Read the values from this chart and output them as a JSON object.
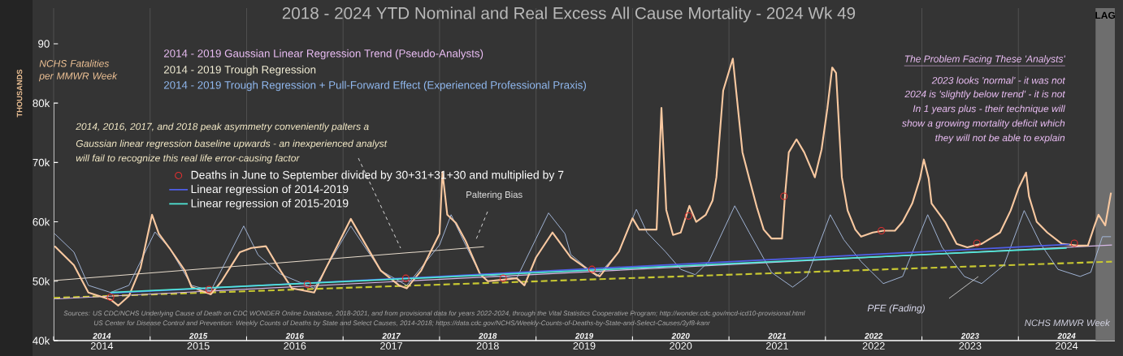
{
  "chart_data": {
    "type": "line",
    "title": "2018 - 2024 YTD Nominal and Real Excess All Cause Mortality - 2024 Wk 49",
    "xlabel": "NCHS MMWR Week",
    "ylabel": "THOUSANDS",
    "xlim": [
      2014,
      2025
    ],
    "xticks": [
      {
        "value": 2014,
        "label": null
      },
      {
        "value": 2015,
        "label": null
      },
      {
        "value": 2016,
        "label": null
      },
      {
        "value": 2017,
        "label": null
      },
      {
        "value": 2018,
        "label": null
      },
      {
        "value": 2019,
        "label": null
      },
      {
        "value": 2020,
        "label": null
      },
      {
        "value": 2021,
        "label": null
      },
      {
        "value": 2022,
        "label": null
      },
      {
        "value": 2023,
        "label": null
      },
      {
        "value": 2024,
        "label": null
      },
      {
        "value": 2014.5,
        "label": "2014"
      },
      {
        "value": 2015.5,
        "label": "2015"
      },
      {
        "value": 2016.5,
        "label": "2016"
      },
      {
        "value": 2017.5,
        "label": "2017"
      },
      {
        "value": 2018.5,
        "label": "2018"
      },
      {
        "value": 2019.5,
        "label": "2019"
      },
      {
        "value": 2020.5,
        "label": "2020"
      },
      {
        "value": 2021.5,
        "label": "2021"
      },
      {
        "value": 2022.5,
        "label": "2022"
      },
      {
        "value": 2023.5,
        "label": "2023"
      },
      {
        "value": 2024.5,
        "label": "2024"
      }
    ],
    "x2lim": [
      2014,
      2025
    ],
    "x2ticks": [
      {
        "value": 2014.5,
        "label": "2014"
      },
      {
        "value": 2015.5,
        "label": "2015"
      },
      {
        "value": 2016.5,
        "label": "2016"
      },
      {
        "value": 2017.5,
        "label": "2017"
      },
      {
        "value": 2018.5,
        "label": "2018"
      },
      {
        "value": 2019.5,
        "label": "2019"
      },
      {
        "value": 2020.5,
        "label": "2020"
      },
      {
        "value": 2021.5,
        "label": "2021"
      },
      {
        "value": 2022.5,
        "label": "2022"
      },
      {
        "value": 2023.5,
        "label": "2023"
      },
      {
        "value": 2024.5,
        "label": "2024"
      }
    ],
    "ylim": [
      40,
      96
    ],
    "yticks": [
      {
        "value": 40,
        "label": "40k"
      },
      {
        "value": 50,
        "label": "50k"
      },
      {
        "value": 60,
        "label": "60k"
      },
      {
        "value": 70,
        "label": "70k"
      },
      {
        "value": 80,
        "label": "80k"
      },
      {
        "value": 90,
        "label": "90"
      }
    ],
    "grid": "x",
    "legend": "left",
    "bands": [
      {
        "axis": "x",
        "from": 2024.8,
        "to": 2025,
        "label": "LAG",
        "color": "#6e6e6e"
      }
    ],
    "series": [
      {
        "color": "#c8c832",
        "line_style": "dashed",
        "marker": "none",
        "x": [
          2014.0,
          2024.97
        ],
        "values": [
          47.2,
          53.3
        ]
      },
      {
        "color": "#d8b8e8",
        "marker": "none",
        "x": [
          2014.0,
          2024.97
        ],
        "values": [
          47.0,
          56.1
        ]
      },
      {
        "color": "#e8dccc",
        "marker": "none",
        "x": [
          2014.0,
          2018.46
        ],
        "values": [
          50.1,
          55.8
        ]
      },
      {
        "color": "#a8bce0",
        "marker": "none",
        "x": [
          2014.01,
          2014.21,
          2014.36,
          2014.59,
          2014.78,
          2015.05,
          2015.2,
          2015.43,
          2015.63,
          2015.97,
          2016.12,
          2016.35,
          2016.7,
          2017.08,
          2017.39,
          2017.66,
          2018.0,
          2018.12,
          2018.27,
          2018.42,
          2018.8,
          2019.13,
          2019.3,
          2019.36,
          2019.63,
          2019.86,
          2020.04,
          2020.15,
          2020.34,
          2020.5,
          2020.65,
          2020.79,
          2021.06,
          2021.21,
          2021.44,
          2021.66,
          2021.81,
          2022.05,
          2022.19,
          2022.37,
          2022.6,
          2022.8,
          2023.06,
          2023.21,
          2023.44,
          2023.62,
          2023.85,
          2024.06,
          2024.23,
          2024.41,
          2024.64,
          2024.75,
          2024.87,
          2024.96
        ],
        "values": [
          58.0,
          54.9,
          49.3,
          48.1,
          49.3,
          58.3,
          55.6,
          49.3,
          48.4,
          59.3,
          54.4,
          51.2,
          48.8,
          59.3,
          51.8,
          49.3,
          56.1,
          61.2,
          56.1,
          51.2,
          50.5,
          61.5,
          58.0,
          54.5,
          50.8,
          55.0,
          62.1,
          58.2,
          55.0,
          52.0,
          51.1,
          53.3,
          62.7,
          58.2,
          51.5,
          49.0,
          50.8,
          61.2,
          57.0,
          53.3,
          49.6,
          50.8,
          61.2,
          55.7,
          50.8,
          49.6,
          52.7,
          61.9,
          56.3,
          52.0,
          50.8,
          51.5,
          57.5,
          57.5
        ]
      },
      {
        "color": "#f8c8a0",
        "marker": "none",
        "x": [
          2014.01,
          2014.21,
          2014.36,
          2014.59,
          2014.67,
          2014.78,
          2014.9,
          2015.02,
          2015.09,
          2015.2,
          2015.36,
          2015.43,
          2015.63,
          2015.74,
          2015.93,
          2016.05,
          2016.2,
          2016.35,
          2016.47,
          2016.7,
          2016.81,
          2017.08,
          2017.19,
          2017.39,
          2017.58,
          2017.66,
          2017.81,
          2018.0,
          2018.03,
          2018.08,
          2018.17,
          2018.27,
          2018.42,
          2018.5,
          2018.8,
          2018.88,
          2019.0,
          2019.17,
          2019.36,
          2019.59,
          2019.66,
          2019.86,
          2020.0,
          2020.07,
          2020.25,
          2020.3,
          2020.35,
          2020.42,
          2020.5,
          2020.59,
          2020.66,
          2020.76,
          2020.83,
          2020.87,
          2020.94,
          2021.04,
          2021.14,
          2021.21,
          2021.29,
          2021.36,
          2021.44,
          2021.55,
          2021.58,
          2021.62,
          2021.7,
          2021.78,
          2021.89,
          2021.96,
          2022.02,
          2022.07,
          2022.11,
          2022.17,
          2022.23,
          2022.31,
          2022.37,
          2022.49,
          2022.6,
          2022.72,
          2022.8,
          2022.9,
          2022.98,
          2023.02,
          2023.07,
          2023.1,
          2023.24,
          2023.36,
          2023.47,
          2023.62,
          2023.81,
          2023.92,
          2024.0,
          2024.08,
          2024.11,
          2024.19,
          2024.3,
          2024.45,
          2024.61,
          2024.72,
          2024.79,
          2024.83,
          2024.9,
          2024.96
        ],
        "values": [
          55.9,
          52.7,
          48.1,
          46.9,
          45.9,
          47.5,
          52.2,
          61.2,
          58.0,
          55.6,
          51.8,
          49.0,
          47.8,
          50.0,
          54.9,
          55.6,
          55.9,
          51.8,
          48.8,
          48.1,
          51.8,
          60.5,
          57.4,
          51.8,
          49.3,
          48.8,
          51.8,
          58.0,
          68.4,
          61.2,
          59.8,
          56.8,
          51.2,
          50.0,
          50.5,
          49.3,
          54.0,
          58.2,
          54.0,
          51.4,
          50.8,
          55.0,
          60.6,
          58.7,
          58.7,
          79.2,
          62.0,
          57.8,
          58.2,
          62.7,
          60.0,
          61.2,
          63.6,
          67.5,
          82.1,
          87.5,
          71.7,
          67.3,
          62.4,
          58.7,
          57.2,
          57.2,
          64.3,
          71.7,
          73.9,
          71.7,
          67.5,
          72.2,
          79.1,
          86.0,
          85.1,
          67.5,
          61.9,
          58.7,
          57.5,
          58.2,
          58.5,
          58.5,
          60.0,
          63.1,
          67.3,
          70.5,
          67.3,
          63.1,
          60.0,
          56.3,
          55.7,
          56.3,
          58.2,
          61.9,
          65.6,
          68.3,
          64.3,
          60.0,
          58.2,
          56.3,
          56.0,
          56.0,
          59.4,
          61.2,
          59.4,
          64.9
        ]
      },
      {
        "type": "scatter",
        "name": "Deaths in June to September divided by 30+31+31+30 and multiplied by 7",
        "color": "#e03030",
        "marker": "circle",
        "x": [
          2014.59,
          2015.61,
          2016.63,
          2017.65,
          2018.66,
          2019.58,
          2020.58,
          2021.57,
          2022.58,
          2023.57,
          2024.58
        ],
        "values": [
          47.3,
          48.6,
          49.5,
          50.5,
          50.5,
          52.0,
          61.0,
          64.3,
          58.5,
          56.4,
          56.4
        ]
      },
      {
        "name": "Linear regression of 2014-2019",
        "color": "#4f5fe8",
        "marker": "none",
        "x": [
          2014.59,
          2024.53
        ],
        "values": [
          48.0,
          56.2
        ]
      },
      {
        "name": "Linear regression of 2015-2019",
        "color": "#50e8d8",
        "marker": "none",
        "x": [
          2014.59,
          2024.5
        ],
        "values": [
          48.1,
          55.6
        ]
      }
    ],
    "annotations": [
      "NCHS Fatalities per MMWR Week",
      "2014 - 2019 Gaussian Linear Regression Trend (Pseudo-Analysts)",
      "2014 - 2019 Trough Regression",
      "2014 - 2019 Trough Regression + Pull-Forward Effect (Experienced Professional Praxis)",
      "2014,  2016,  2017,  and 2018  peak asymmetry conveniently palters a",
      "Gaussian linear regression baseline upwards - an inexperienced analyst",
      "will fail to recognize this real life error-causing factor",
      "Paltering Bias",
      "The Problem Facing These 'Analysts'",
      "2023  looks 'normal' - it was not",
      "2024  is 'slightly below trend' - it is not",
      "In 1 years plus - their technique will",
      "show a growing mortality deficit which",
      "they will not be able to explain",
      "PFE (Fading)",
      "Sources:  US CDC/NCHS Underlying  Cause of Death on CDC WONDER Online Database, 2018-2021, and from provisional data for years 2022-2024, through the Vital Statistics Cooperative Program; http://wonder.cdc.gov/mcd-icd10-provisional.html",
      "US Center for Disease Control and Prevention: Weekly  Counts of Deaths by State and Select Causes, 2014-2018; https://data.cdc.gov/NCHS/Weekly-Counts-of-Deaths-by-State-and-Select-Causes/3yf8-kanr"
    ]
  }
}
